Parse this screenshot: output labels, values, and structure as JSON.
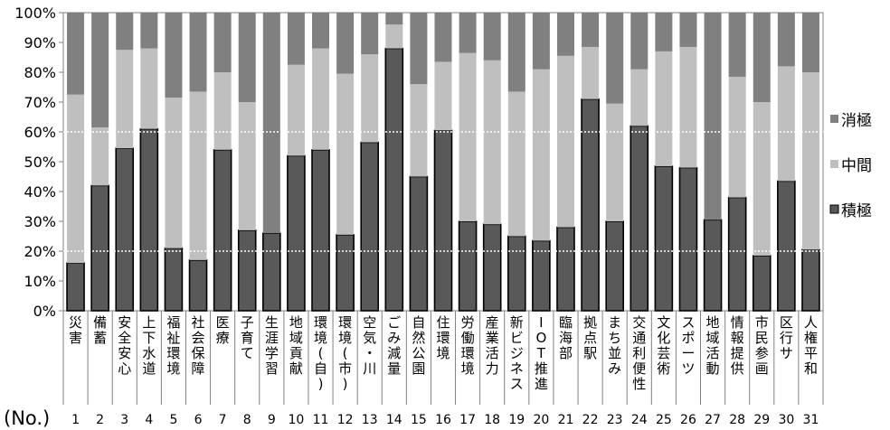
{
  "chart_data": {
    "type": "bar",
    "stacked": true,
    "title": "",
    "xlabel": "(No.)",
    "ylabel": "",
    "ylim": [
      0,
      100
    ],
    "yticks": [
      "0%",
      "10%",
      "20%",
      "30%",
      "40%",
      "50%",
      "60%",
      "70%",
      "80%",
      "90%",
      "100%"
    ],
    "categories": [
      "災害",
      "備蓄",
      "安全安心",
      "上下水道",
      "福祉環境",
      "社会保障",
      "医療",
      "子育て",
      "生涯学習",
      "地域貢献",
      "環境(自)",
      "環境(市)",
      "空気・川",
      "ごみ減量",
      "自然公園",
      "住環境",
      "労働環境",
      "産業活力",
      "新ビジネス",
      "IOT推進",
      "臨海部",
      "拠点駅",
      "まち並み",
      "交通利便性",
      "文化芸術",
      "スポーツ",
      "地域活動",
      "情報提供",
      "市民参画",
      "区行サ",
      "人権平和"
    ],
    "numbers": [
      "1",
      "2",
      "3",
      "4",
      "5",
      "6",
      "7",
      "8",
      "9",
      "10",
      "11",
      "12",
      "13",
      "14",
      "15",
      "16",
      "17",
      "18",
      "19",
      "20",
      "21",
      "22",
      "23",
      "24",
      "25",
      "26",
      "27",
      "28",
      "29",
      "30",
      "31"
    ],
    "series": [
      {
        "name": "積極",
        "color": "#595959",
        "values": [
          16,
          42,
          54.5,
          61,
          21,
          17,
          54,
          27,
          26,
          52,
          54,
          25.5,
          56.5,
          88,
          45,
          60.5,
          30,
          29,
          25,
          23.5,
          28,
          71,
          30,
          62,
          48.5,
          48,
          30.5,
          38,
          18.5,
          43.5,
          20.5
        ]
      },
      {
        "name": "中間",
        "color": "#bfbfbf",
        "values": [
          56.5,
          19.5,
          33,
          27,
          50.5,
          56.5,
          26,
          43,
          0,
          30.5,
          34,
          54,
          29.5,
          8,
          31,
          23,
          56.5,
          55,
          48.5,
          57.5,
          57.5,
          17.5,
          39.5,
          19,
          38.5,
          40.5,
          0,
          40.5,
          51.5,
          38.5,
          59.5
        ]
      },
      {
        "name": "消極",
        "color": "#808080",
        "values": [
          27.5,
          38.5,
          12.5,
          12,
          28.5,
          26.5,
          20,
          30,
          74,
          17.5,
          12,
          20.5,
          14,
          4,
          24,
          16.5,
          13.5,
          16,
          26.5,
          19,
          14.5,
          11.5,
          30.5,
          19,
          13,
          11.5,
          69.5,
          21.5,
          30,
          18,
          20
        ]
      }
    ],
    "legend_order": [
      "消極",
      "中間",
      "積極"
    ],
    "legend_position": "right",
    "grid": "dotted white at 20% and 60%"
  }
}
